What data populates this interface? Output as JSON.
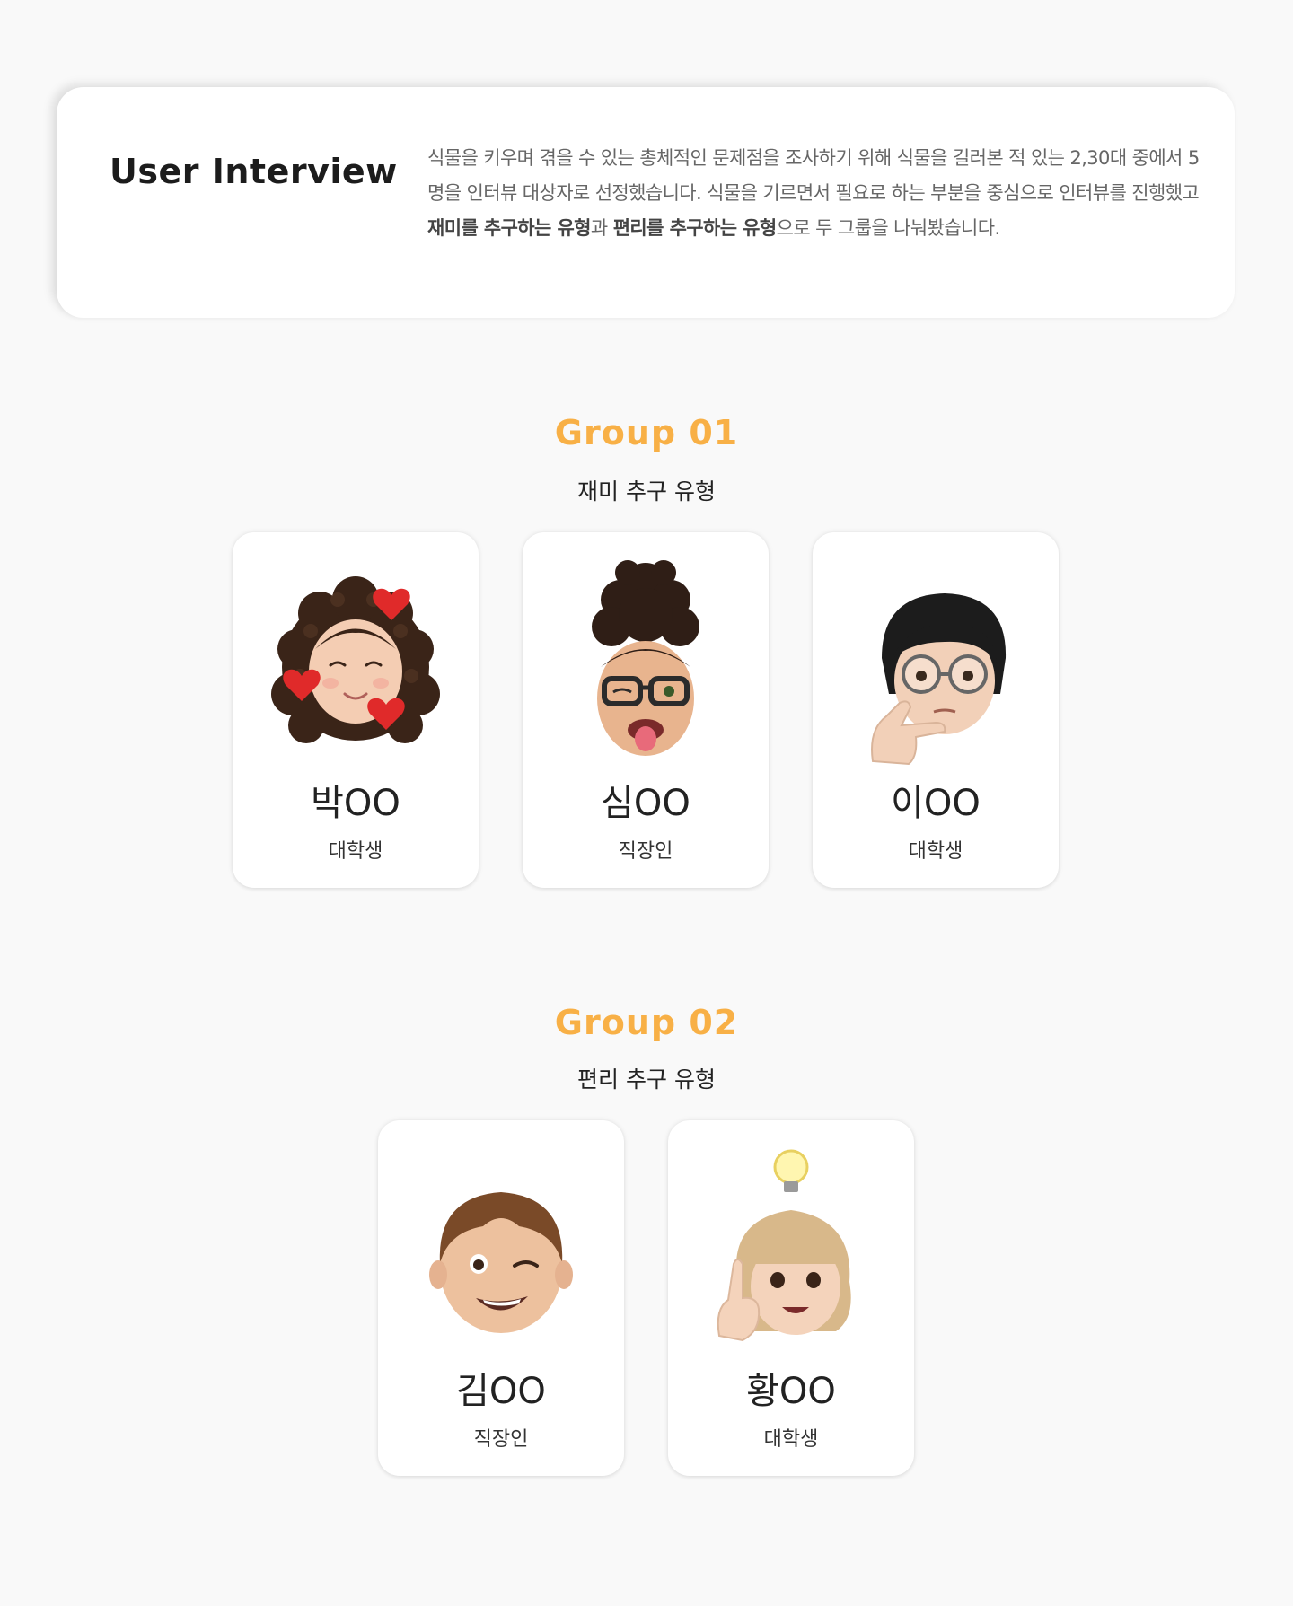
{
  "intro": {
    "title": "User Interview",
    "text_part1": "식물을 키우며 겪을 수 있는 총체적인 문제점을 조사하기 위해 식물을 길러본 적 있는 2,30대 중에서 5명을 인터뷰 대상자로 선정했습니다. 식물을 기르면서 필요로 하는 부분을 중심으로 인터뷰를 진행했고 ",
    "bold1": "재미를 추구하는 유형",
    "text_part2": "과 ",
    "bold2": "편리를 추구하는 유형",
    "text_part3": "으로 두 그룹을 나눠봤습니다."
  },
  "groups": [
    {
      "title": "Group 01",
      "subtitle": "재미 추구 유형",
      "members": [
        {
          "name": "박OO",
          "role": "대학생",
          "avatar_icon": "memoji-curly-hair-hearts-icon"
        },
        {
          "name": "심OO",
          "role": "직장인",
          "avatar_icon": "memoji-bun-glasses-tongue-icon"
        },
        {
          "name": "이OO",
          "role": "대학생",
          "avatar_icon": "memoji-thinking-glasses-icon"
        }
      ]
    },
    {
      "title": "Group 02",
      "subtitle": "편리 추구 유형",
      "members": [
        {
          "name": "김OO",
          "role": "직장인",
          "avatar_icon": "memoji-winking-icon"
        },
        {
          "name": "황OO",
          "role": "대학생",
          "avatar_icon": "memoji-lightbulb-idea-icon"
        }
      ]
    }
  ],
  "colors": {
    "background": "#f9f9f9",
    "accent": "#f8b046",
    "card": "#ffffff"
  }
}
